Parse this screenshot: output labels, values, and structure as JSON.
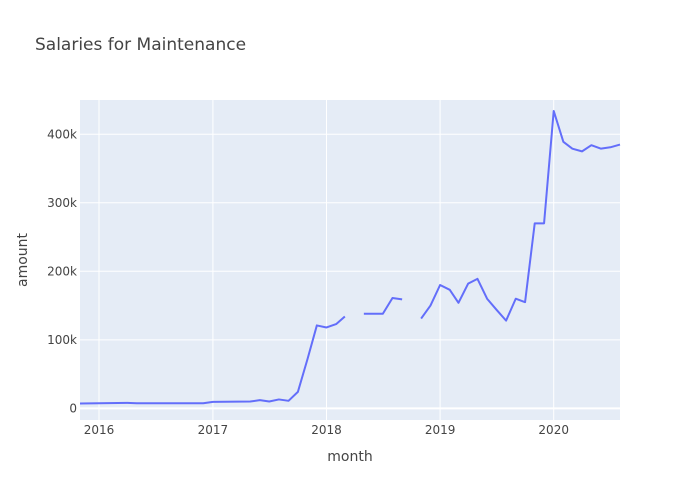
{
  "chart_data": {
    "type": "line",
    "title": "Salaries for Maintenance",
    "xlabel": "month",
    "ylabel": "amount",
    "x_range": [
      "2015-11-01",
      "2020-08-01"
    ],
    "ylim": [
      -17000,
      450000
    ],
    "x_ticks": [
      {
        "date": "2016-01-01",
        "label": "2016"
      },
      {
        "date": "2017-01-01",
        "label": "2017"
      },
      {
        "date": "2018-01-01",
        "label": "2018"
      },
      {
        "date": "2019-01-01",
        "label": "2019"
      },
      {
        "date": "2020-01-01",
        "label": "2020"
      }
    ],
    "y_ticks": [
      {
        "value": 0,
        "label": "0"
      },
      {
        "value": 100000,
        "label": "100k"
      },
      {
        "value": 200000,
        "label": "200k"
      },
      {
        "value": 300000,
        "label": "300k"
      },
      {
        "value": 400000,
        "label": "400k"
      }
    ],
    "grid": true,
    "colors": {
      "line": "#636efa",
      "plot_bg": "#e5ecf6",
      "grid": "#ffffff"
    },
    "series": [
      {
        "points": [
          [
            "2015-11-01",
            7000
          ],
          [
            "2016-01-01",
            7500
          ],
          [
            "2016-04-01",
            8000
          ],
          [
            "2016-05-01",
            7500
          ],
          [
            "2016-12-01",
            7500
          ],
          [
            "2017-01-01",
            9500
          ],
          [
            "2017-05-01",
            10000
          ],
          [
            "2017-06-01",
            12000
          ],
          [
            "2017-07-01",
            10000
          ],
          [
            "2017-08-01",
            13000
          ],
          [
            "2017-09-01",
            11000
          ],
          [
            "2017-10-01",
            24000
          ],
          [
            "2017-11-01",
            72000
          ],
          [
            "2017-12-01",
            121000
          ],
          [
            "2018-01-01",
            118000
          ],
          [
            "2018-02-01",
            123000
          ],
          [
            "2018-03-01",
            134000
          ],
          [
            "2018-04-01",
            null
          ],
          [
            "2018-05-01",
            138000
          ],
          [
            "2018-07-01",
            138000
          ],
          [
            "2018-08-01",
            161000
          ],
          [
            "2018-09-01",
            159000
          ],
          [
            "2018-10-01",
            null
          ],
          [
            "2018-11-01",
            131000
          ],
          [
            "2018-12-01",
            150000
          ],
          [
            "2019-01-01",
            180000
          ],
          [
            "2019-02-01",
            173000
          ],
          [
            "2019-03-01",
            154000
          ],
          [
            "2019-04-01",
            182000
          ],
          [
            "2019-05-01",
            189000
          ],
          [
            "2019-06-01",
            160000
          ],
          [
            "2019-07-01",
            144000
          ],
          [
            "2019-08-01",
            128000
          ],
          [
            "2019-09-01",
            160000
          ],
          [
            "2019-10-01",
            155000
          ],
          [
            "2019-11-01",
            270000
          ],
          [
            "2019-12-01",
            270000
          ],
          [
            "2020-01-01",
            434000
          ],
          [
            "2020-02-01",
            389000
          ],
          [
            "2020-03-01",
            379000
          ],
          [
            "2020-04-01",
            375000
          ],
          [
            "2020-05-01",
            384000
          ],
          [
            "2020-06-01",
            379000
          ],
          [
            "2020-07-01",
            381000
          ],
          [
            "2020-08-01",
            385000
          ]
        ]
      }
    ]
  }
}
